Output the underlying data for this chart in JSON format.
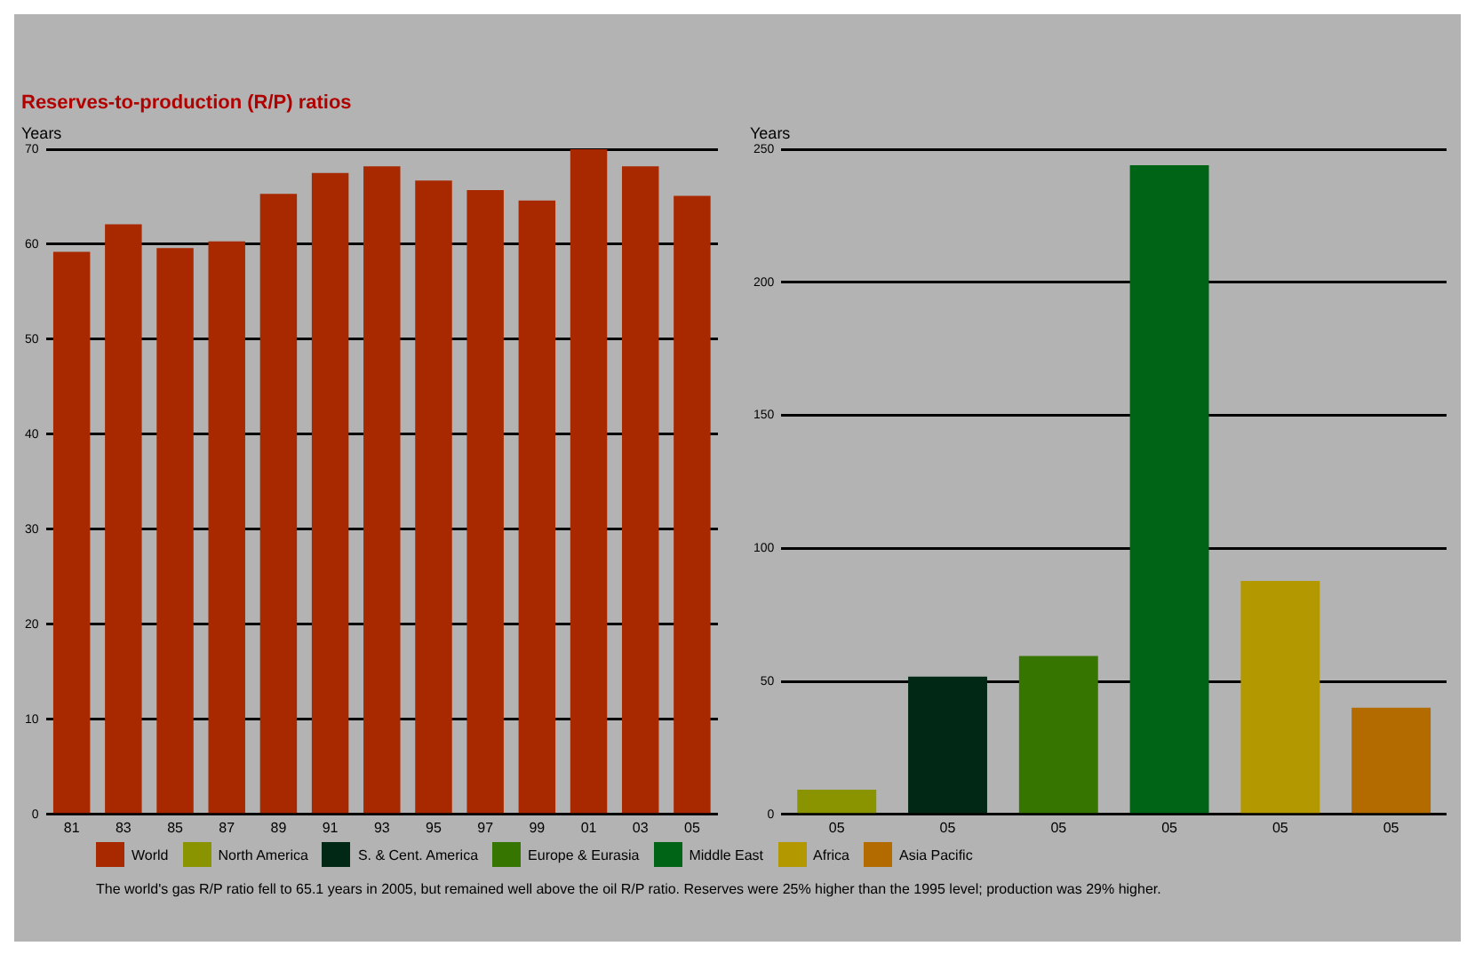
{
  "chart_data": [
    {
      "type": "bar",
      "title": "Reserves-to-production (R/P) ratios",
      "ylabel": "Years",
      "categories": [
        "81",
        "83",
        "85",
        "87",
        "89",
        "91",
        "93",
        "95",
        "97",
        "99",
        "01",
        "03",
        "05"
      ],
      "series": [
        {
          "name": "World",
          "color": "#a82800",
          "values": [
            59.2,
            62.1,
            59.6,
            60.3,
            65.3,
            67.5,
            68.2,
            66.7,
            65.7,
            64.6,
            70.0,
            68.2,
            65.1
          ]
        }
      ],
      "ylim": [
        0,
        70
      ],
      "yticks": [
        0,
        10,
        20,
        30,
        40,
        50,
        60,
        70
      ],
      "grid": "y",
      "legend": "bottom",
      "annotations": [
        "The world's gas R/P ratio fell to 65.1 years in 2005, but remained well above the oil R/P ratio. Reserves were 25% higher than the 1995 level; production was 29% higher."
      ]
    },
    {
      "type": "bar",
      "ylabel": "Years",
      "categories": [
        "05",
        "05",
        "05",
        "05",
        "05",
        "05"
      ],
      "series": [
        {
          "name": "North America",
          "color": "#899400",
          "values": [
            9.3,
            null,
            null,
            null,
            null,
            null
          ]
        },
        {
          "name": "S. & Cent. America",
          "color": "#002814",
          "values": [
            null,
            51.8,
            null,
            null,
            null,
            null
          ]
        },
        {
          "name": "Europe & Eurasia",
          "color": "#367600",
          "values": [
            null,
            null,
            59.5,
            null,
            null,
            null
          ]
        },
        {
          "name": "Middle East",
          "color": "#006416",
          "values": [
            null,
            null,
            null,
            244,
            null,
            null
          ]
        },
        {
          "name": "Africa",
          "color": "#b39800",
          "values": [
            null,
            null,
            null,
            null,
            87.7,
            null
          ]
        },
        {
          "name": "Asia Pacific",
          "color": "#b36b00",
          "values": [
            null,
            null,
            null,
            null,
            null,
            40.1
          ]
        }
      ],
      "ylim": [
        0,
        250
      ],
      "yticks": [
        0,
        50,
        100,
        150,
        200,
        250
      ],
      "grid": "y",
      "legend": "bottom"
    }
  ]
}
